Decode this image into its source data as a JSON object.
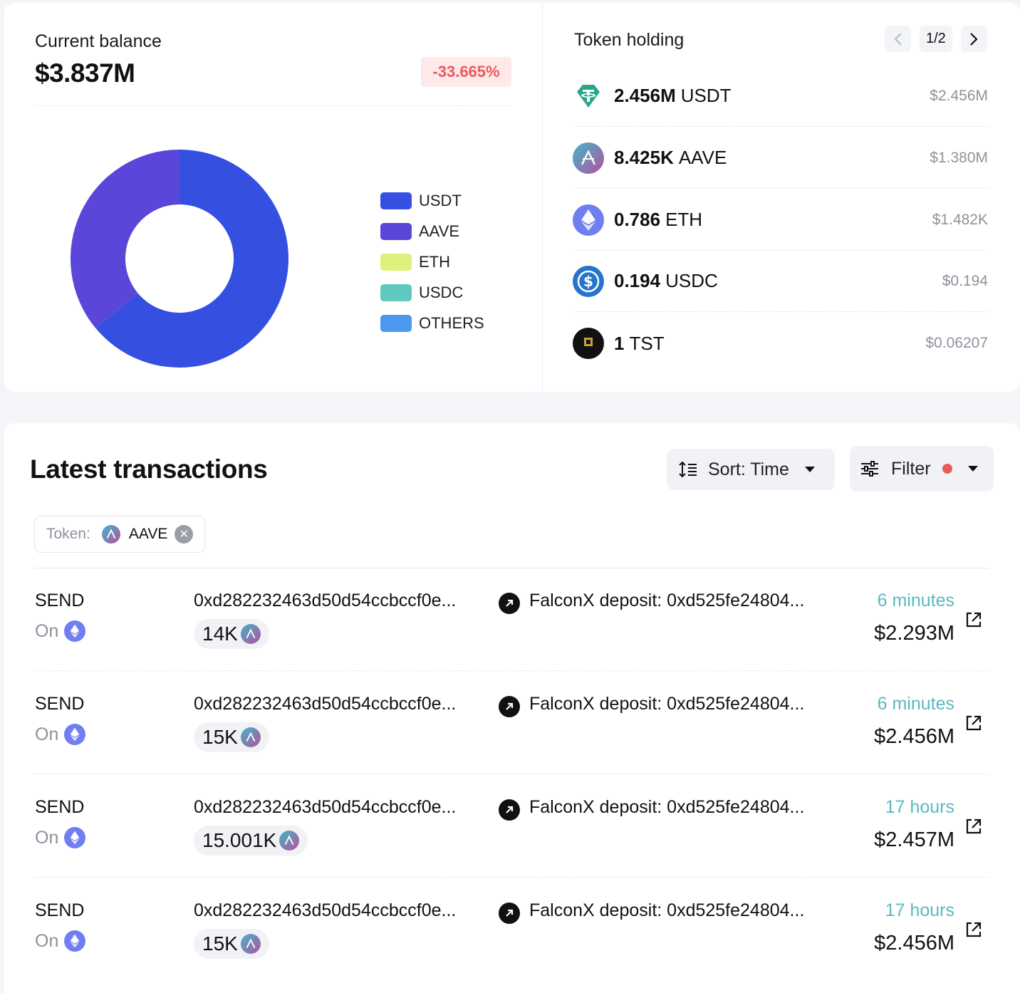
{
  "balance": {
    "label": "Current balance",
    "value": "$3.837M",
    "change": "-33.665%"
  },
  "chart_data": {
    "type": "pie",
    "categories": [
      "USDT",
      "AAVE",
      "ETH",
      "USDC",
      "OTHERS"
    ],
    "values": [
      64.0,
      36.0,
      0.0,
      0.0,
      0.0
    ],
    "colors": [
      "#3550e0",
      "#5a46d9",
      "#dff07c",
      "#5fc9c0",
      "#4c97ef"
    ],
    "legend_position": "right"
  },
  "holdings": {
    "title": "Token holding",
    "page": "1/2",
    "items": [
      {
        "amount": "2.456M",
        "symbol": "USDT",
        "usd": "$2.456M",
        "icon": "usdt-icon",
        "color": "#2aa58a"
      },
      {
        "amount": "8.425K",
        "symbol": "AAVE",
        "usd": "$1.380M",
        "icon": "aave-icon",
        "color": "#8a63c9"
      },
      {
        "amount": "0.786",
        "symbol": "ETH",
        "usd": "$1.482K",
        "icon": "eth-icon",
        "color": "#6f7ef0"
      },
      {
        "amount": "0.194",
        "symbol": "USDC",
        "usd": "$0.194",
        "icon": "usdc-icon",
        "color": "#2775ca"
      },
      {
        "amount": "1",
        "symbol": "TST",
        "usd": "$0.06207",
        "icon": "tst-icon",
        "color": "#111111"
      }
    ]
  },
  "transactions": {
    "title": "Latest transactions",
    "sort_label": "Sort: Time",
    "filter_label": "Filter",
    "chip": {
      "label": "Token:",
      "token": "AAVE"
    },
    "rows": [
      {
        "type": "SEND",
        "on": "On",
        "from": "0xd282232463d50d54ccbccf0e...",
        "to": "FalconX deposit: 0xd525fe24804...",
        "amount": "14K",
        "time": "6 minutes",
        "usd": "$2.293M"
      },
      {
        "type": "SEND",
        "on": "On",
        "from": "0xd282232463d50d54ccbccf0e...",
        "to": "FalconX deposit: 0xd525fe24804...",
        "amount": "15K",
        "time": "6 minutes",
        "usd": "$2.456M"
      },
      {
        "type": "SEND",
        "on": "On",
        "from": "0xd282232463d50d54ccbccf0e...",
        "to": "FalconX deposit: 0xd525fe24804...",
        "amount": "15.001K",
        "time": "17 hours",
        "usd": "$2.457M"
      },
      {
        "type": "SEND",
        "on": "On",
        "from": "0xd282232463d50d54ccbccf0e...",
        "to": "FalconX deposit: 0xd525fe24804...",
        "amount": "15K",
        "time": "17 hours",
        "usd": "$2.456M"
      }
    ]
  }
}
